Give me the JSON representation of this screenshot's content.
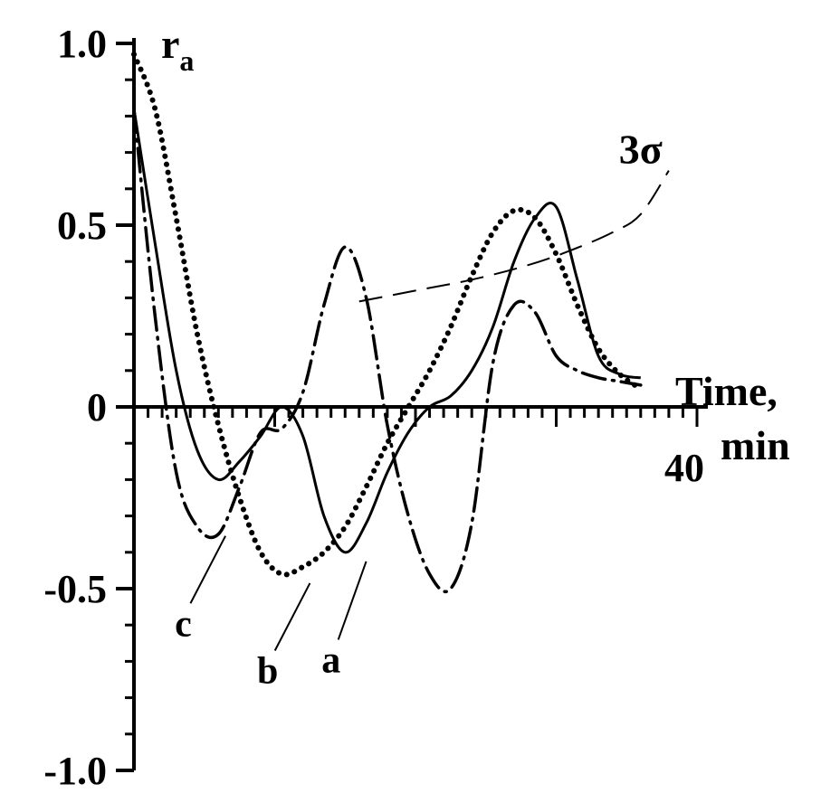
{
  "chart_data": {
    "type": "line",
    "ylabel_main": "r",
    "ylabel_sub": "a",
    "xlabel_line1": "Time,",
    "xlabel_line2": "min",
    "xlim": [
      0,
      40
    ],
    "ylim": [
      -1.0,
      1.0
    ],
    "x_tick_labels": [
      {
        "value": 40,
        "label": "40"
      }
    ],
    "y_tick_labels": [
      {
        "value": 1.0,
        "label": "1.0"
      },
      {
        "value": 0.5,
        "label": "0.5"
      },
      {
        "value": 0,
        "label": "0"
      },
      {
        "value": -0.5,
        "label": "-0.5"
      },
      {
        "value": -1.0,
        "label": "-1.0"
      }
    ],
    "grid": false,
    "series": [
      {
        "name": "a",
        "style": "solid",
        "x": [
          0,
          1.5,
          3,
          4.5,
          6,
          7.5,
          9,
          10.5,
          12,
          13.5,
          15,
          16.5,
          18,
          19.5,
          21,
          22.5,
          24,
          25.5,
          27,
          28.5,
          30,
          31.5,
          33,
          34.5,
          36
        ],
        "y": [
          0.82,
          0.45,
          0.1,
          -0.12,
          -0.2,
          -0.15,
          -0.08,
          0.0,
          -0.08,
          -0.3,
          -0.4,
          -0.32,
          -0.18,
          -0.07,
          0.0,
          0.03,
          0.1,
          0.22,
          0.4,
          0.52,
          0.55,
          0.35,
          0.14,
          0.09,
          0.08
        ]
      },
      {
        "name": "b",
        "style": "dotted",
        "x": [
          0,
          1.5,
          3,
          4.5,
          6,
          7.5,
          9,
          10.5,
          12,
          13.5,
          15,
          16.5,
          18,
          19.5,
          21,
          22.5,
          24,
          25.5,
          27,
          28.5,
          30,
          31.5,
          33,
          34.5,
          36
        ],
        "y": [
          0.97,
          0.82,
          0.52,
          0.2,
          -0.05,
          -0.25,
          -0.4,
          -0.46,
          -0.44,
          -0.4,
          -0.33,
          -0.22,
          -0.1,
          0.0,
          0.1,
          0.22,
          0.36,
          0.48,
          0.54,
          0.52,
          0.42,
          0.28,
          0.16,
          0.09,
          0.05
        ]
      },
      {
        "name": "c",
        "style": "dash-dot",
        "x": [
          0,
          1.5,
          3,
          4.5,
          6,
          7.5,
          9,
          10.5,
          12,
          13.5,
          15,
          16.5,
          18,
          19.5,
          21,
          22.5,
          24,
          25.5,
          27,
          28.5,
          30,
          31.5,
          33,
          34.5,
          36
        ],
        "y": [
          0.82,
          0.25,
          -0.18,
          -0.33,
          -0.35,
          -0.22,
          -0.07,
          -0.06,
          0.04,
          0.28,
          0.44,
          0.3,
          -0.05,
          -0.3,
          -0.46,
          -0.5,
          -0.32,
          0.12,
          0.28,
          0.26,
          0.14,
          0.1,
          0.08,
          0.07,
          0.06
        ]
      },
      {
        "name": "3σ",
        "style": "dashed",
        "x": [
          16,
          20,
          24,
          28,
          31,
          34,
          36,
          38
        ],
        "y": [
          0.29,
          0.32,
          0.35,
          0.39,
          0.43,
          0.48,
          0.53,
          0.65
        ]
      }
    ],
    "annotations": [
      {
        "text": "c",
        "x": 3.5,
        "y": -0.63,
        "leader_from": [
          6.5,
          -0.34
        ]
      },
      {
        "text": "b",
        "x": 9.5,
        "y": -0.76,
        "leader_from": [
          12.5,
          -0.47
        ]
      },
      {
        "text": "a",
        "x": 14.0,
        "y": -0.73,
        "leader_from": [
          16.5,
          -0.41
        ]
      },
      {
        "text": "3σ",
        "x": 36.0,
        "y": 0.67
      }
    ]
  }
}
